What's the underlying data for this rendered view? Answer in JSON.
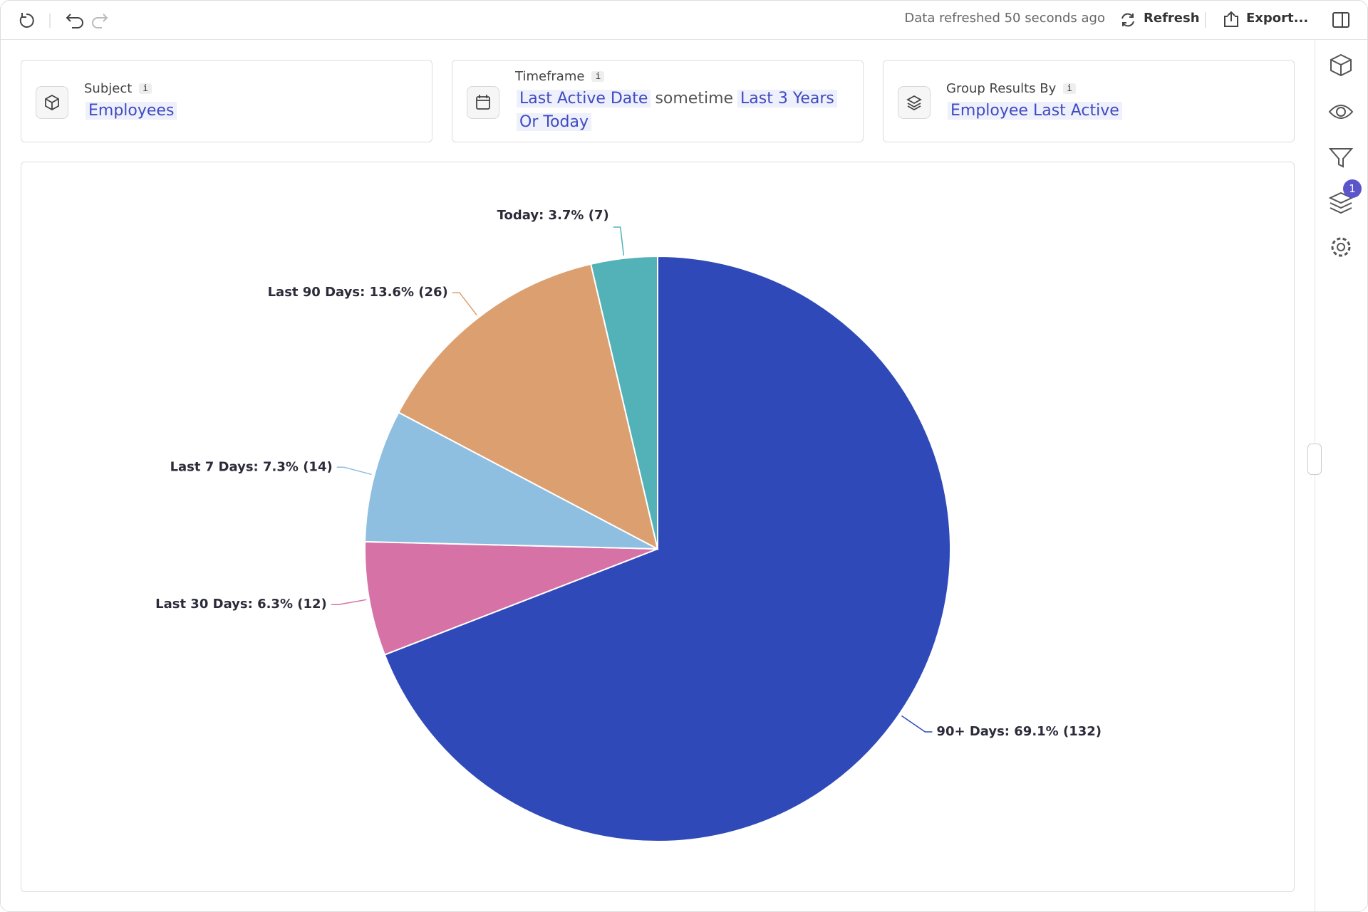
{
  "toolbar": {
    "status": "Data refreshed 50 seconds ago",
    "refresh": "Refresh",
    "export": "Export..."
  },
  "info": "i",
  "cards": {
    "subject": {
      "label": "Subject",
      "value": "Employees"
    },
    "timeframe": {
      "label": "Timeframe",
      "field": "Last Active Date",
      "operator": "sometime",
      "value": "Last 3 Years Or Today"
    },
    "group": {
      "label": "Group Results By",
      "value": "Employee Last Active"
    }
  },
  "sidebar": {
    "badge": "1"
  },
  "chart_data": {
    "type": "pie",
    "categories": [
      "90+ Days",
      "Last 30 Days",
      "Last 7 Days",
      "Last 90 Days",
      "Today"
    ],
    "values": [
      132,
      12,
      14,
      26,
      7
    ],
    "value_labels": [
      "90+ Days: 69.1% (132)",
      "Last 30 Days: 6.3% (12)",
      "Last 7 Days: 7.3% (14)",
      "Last 90 Days: 13.6% (26)",
      "Today: 3.7% (7)"
    ],
    "colors": [
      "#2f4ab8",
      "#d672a6",
      "#8ebee0",
      "#dca070",
      "#52b2b8"
    ]
  }
}
